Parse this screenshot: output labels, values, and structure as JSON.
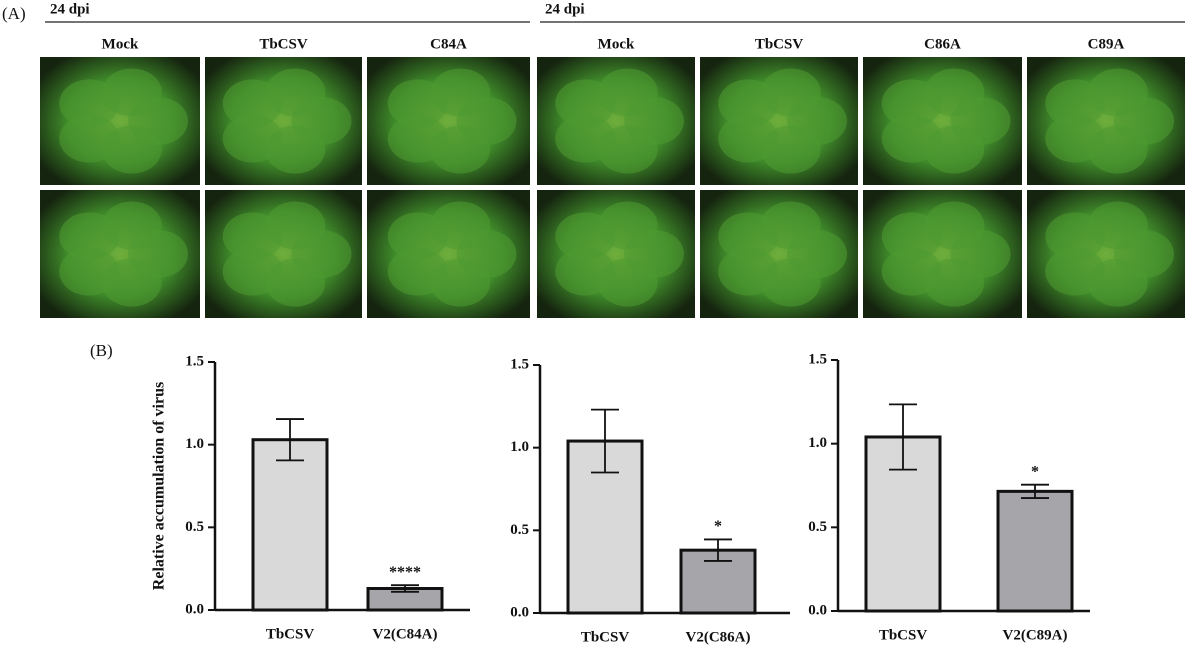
{
  "panel_a": {
    "label": "(A)",
    "groups": [
      {
        "title": "24 dpi",
        "columns": [
          "Mock",
          "TbCSV",
          "C84A"
        ]
      },
      {
        "title": "24 dpi",
        "columns": [
          "Mock",
          "TbCSV",
          "C86A",
          "C89A"
        ]
      }
    ]
  },
  "panel_b": {
    "label": "(B)"
  },
  "chart_data": [
    {
      "type": "bar",
      "ylabel": "Relative accumulation of virus",
      "categories": [
        "TbCSV",
        "V2(C84A)"
      ],
      "values": [
        1.03,
        0.13
      ],
      "errors": [
        0.125,
        0.02
      ],
      "significance": [
        null,
        "****"
      ],
      "colors": [
        "#d9d9d9",
        "#a5a5aa"
      ],
      "ylim": [
        0,
        1.5
      ],
      "yticks": [
        {
          "value": 0,
          "label": "0.0"
        },
        0.5,
        {
          "value": 1,
          "label": "1.0"
        },
        1.5
      ]
    },
    {
      "type": "bar",
      "categories": [
        "TbCSV",
        "V2(C86A)"
      ],
      "values": [
        1.04,
        0.38
      ],
      "errors": [
        0.19,
        0.065
      ],
      "significance": [
        null,
        "*"
      ],
      "colors": [
        "#d9d9d9",
        "#a5a5aa"
      ],
      "ylim": [
        0,
        1.5
      ],
      "yticks": [
        {
          "value": 0,
          "label": "0.0"
        },
        0.5,
        {
          "value": 1,
          "label": "1.0"
        },
        1.5
      ]
    },
    {
      "type": "bar",
      "categories": [
        "TbCSV",
        "V2(C89A)"
      ],
      "values": [
        1.04,
        0.715
      ],
      "errors": [
        0.195,
        0.04
      ],
      "significance": [
        null,
        "*"
      ],
      "colors": [
        "#d9d9d9",
        "#a5a5aa"
      ],
      "ylim": [
        0,
        1.5
      ],
      "yticks": [
        {
          "value": 0,
          "label": "0.0"
        },
        0.5,
        {
          "value": 1,
          "label": "1.0"
        },
        1.5
      ]
    }
  ]
}
